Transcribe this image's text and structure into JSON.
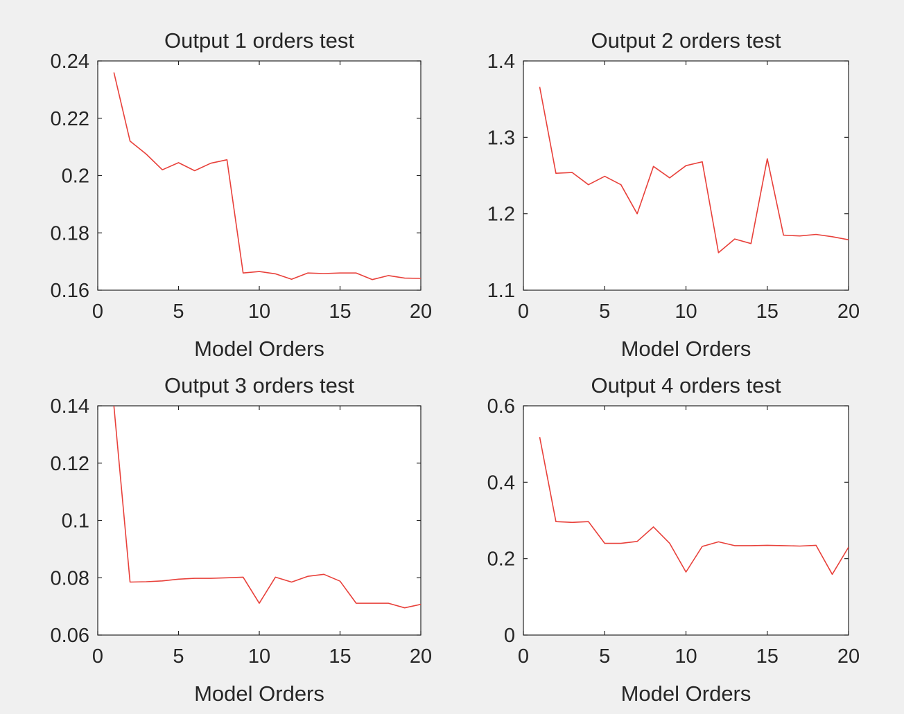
{
  "figure": {
    "background": "#f0f0f0",
    "line_color": "#e8403a"
  },
  "chart_data": [
    {
      "type": "line",
      "title": "Output 1 orders test",
      "xlabel": "Model Orders",
      "ylabel": "",
      "xlim": [
        0,
        20
      ],
      "ylim": [
        0.16,
        0.24
      ],
      "xticks": [
        0,
        5,
        10,
        15,
        20
      ],
      "xtick_labels": [
        "0",
        "5",
        "10",
        "15",
        "20"
      ],
      "yticks": [
        0.16,
        0.18,
        0.2,
        0.22,
        0.24
      ],
      "ytick_labels": [
        "0.16",
        "0.18",
        "0.2",
        "0.22",
        "0.24"
      ],
      "grid": false,
      "series": [
        {
          "x": [
            1,
            2,
            3,
            4,
            5,
            6,
            7,
            8,
            9,
            10,
            11,
            12,
            13,
            14,
            15,
            16,
            17,
            18,
            19,
            20
          ],
          "values": [
            0.236,
            0.212,
            0.2075,
            0.202,
            0.2045,
            0.2017,
            0.2043,
            0.2055,
            0.166,
            0.1665,
            0.1657,
            0.1638,
            0.166,
            0.1658,
            0.166,
            0.166,
            0.1637,
            0.1651,
            0.1642,
            0.1641
          ],
          "color": "#e8403a"
        }
      ]
    },
    {
      "type": "line",
      "title": "Output 2 orders test",
      "xlabel": "Model Orders",
      "ylabel": "",
      "xlim": [
        0,
        20
      ],
      "ylim": [
        1.1,
        1.4
      ],
      "xticks": [
        0,
        5,
        10,
        15,
        20
      ],
      "xtick_labels": [
        "0",
        "5",
        "10",
        "15",
        "20"
      ],
      "yticks": [
        1.1,
        1.2,
        1.3,
        1.4
      ],
      "ytick_labels": [
        "1.1",
        "1.2",
        "1.3",
        "1.4"
      ],
      "grid": false,
      "series": [
        {
          "x": [
            1,
            2,
            3,
            4,
            5,
            6,
            7,
            8,
            9,
            10,
            11,
            12,
            13,
            14,
            15,
            16,
            17,
            18,
            19,
            20
          ],
          "values": [
            1.366,
            1.253,
            1.254,
            1.238,
            1.249,
            1.238,
            1.2,
            1.262,
            1.247,
            1.263,
            1.268,
            1.149,
            1.167,
            1.161,
            1.272,
            1.172,
            1.171,
            1.173,
            1.17,
            1.166
          ],
          "color": "#e8403a"
        }
      ]
    },
    {
      "type": "line",
      "title": "Output 3 orders test",
      "xlabel": "Model Orders",
      "ylabel": "",
      "xlim": [
        0,
        20
      ],
      "ylim": [
        0.06,
        0.14
      ],
      "xticks": [
        0,
        5,
        10,
        15,
        20
      ],
      "xtick_labels": [
        "0",
        "5",
        "10",
        "15",
        "20"
      ],
      "yticks": [
        0.06,
        0.08,
        0.1,
        0.12,
        0.14
      ],
      "ytick_labels": [
        "0.06",
        "0.08",
        "0.1",
        "0.12",
        "0.14"
      ],
      "grid": false,
      "series": [
        {
          "x": [
            1,
            2,
            3,
            4,
            5,
            6,
            7,
            8,
            9,
            10,
            11,
            12,
            13,
            14,
            15,
            16,
            17,
            18,
            19,
            20
          ],
          "values": [
            0.14,
            0.0785,
            0.0786,
            0.0789,
            0.0795,
            0.0798,
            0.0798,
            0.08,
            0.0802,
            0.0711,
            0.0802,
            0.0785,
            0.0805,
            0.0812,
            0.0788,
            0.0711,
            0.0711,
            0.0711,
            0.0695,
            0.0707
          ],
          "color": "#e8403a"
        }
      ]
    },
    {
      "type": "line",
      "title": "Output 4 orders test",
      "xlabel": "Model Orders",
      "ylabel": "",
      "xlim": [
        0,
        20
      ],
      "ylim": [
        0,
        0.6
      ],
      "xticks": [
        0,
        5,
        10,
        15,
        20
      ],
      "xtick_labels": [
        "0",
        "5",
        "10",
        "15",
        "20"
      ],
      "yticks": [
        0,
        0.2,
        0.4,
        0.6
      ],
      "ytick_labels": [
        "0",
        "0.2",
        "0.4",
        "0.6"
      ],
      "grid": false,
      "series": [
        {
          "x": [
            1,
            2,
            3,
            4,
            5,
            6,
            7,
            8,
            9,
            10,
            11,
            12,
            13,
            14,
            15,
            16,
            17,
            18,
            19,
            20
          ],
          "values": [
            0.518,
            0.297,
            0.295,
            0.297,
            0.24,
            0.24,
            0.245,
            0.283,
            0.24,
            0.165,
            0.232,
            0.244,
            0.234,
            0.234,
            0.235,
            0.234,
            0.233,
            0.235,
            0.159,
            0.23
          ],
          "color": "#e8403a"
        }
      ]
    }
  ]
}
